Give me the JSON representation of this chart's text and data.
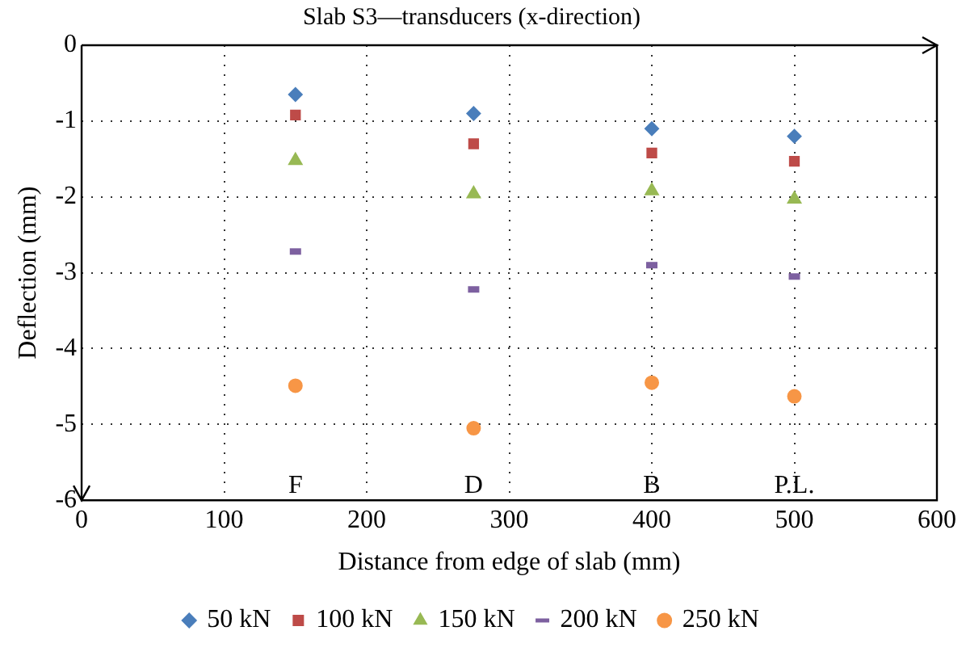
{
  "chart_data": {
    "type": "scatter",
    "title": "Slab S3—transducers (x-direction)",
    "xlabel": "Distance from edge of slab (mm)",
    "ylabel": "Deflection (mm)",
    "x": [
      150,
      275,
      400,
      500
    ],
    "series": [
      {
        "name": "50 kN",
        "color": "#4a7ebb",
        "marker": "diamond",
        "values": [
          -0.65,
          -0.9,
          -1.1,
          -1.2
        ]
      },
      {
        "name": "100 kN",
        "color": "#be4b48",
        "marker": "square",
        "values": [
          -0.92,
          -1.3,
          -1.42,
          -1.53
        ]
      },
      {
        "name": "150 kN",
        "color": "#98b954",
        "marker": "triangle",
        "values": [
          -1.52,
          -1.96,
          -1.92,
          -2.03
        ]
      },
      {
        "name": "200 kN",
        "color": "#7d60a0",
        "values": [
          -2.72,
          -3.22,
          -2.9,
          -3.05
        ]
      },
      {
        "name": "250 kN",
        "color": "#f79646",
        "marker": "circle",
        "values": [
          -4.49,
          -5.05,
          -4.45,
          -4.63
        ]
      }
    ],
    "annotations": [
      "F",
      "D",
      "B",
      "P.L."
    ],
    "xlim": [
      0,
      600
    ],
    "xticks": [
      0,
      100,
      200,
      300,
      400,
      500,
      600
    ],
    "ylim": [
      -6,
      0
    ],
    "yticks": [
      -6,
      -5,
      -4,
      -3,
      -2,
      -1,
      0
    ],
    "grid": true,
    "legend": "bottom"
  }
}
